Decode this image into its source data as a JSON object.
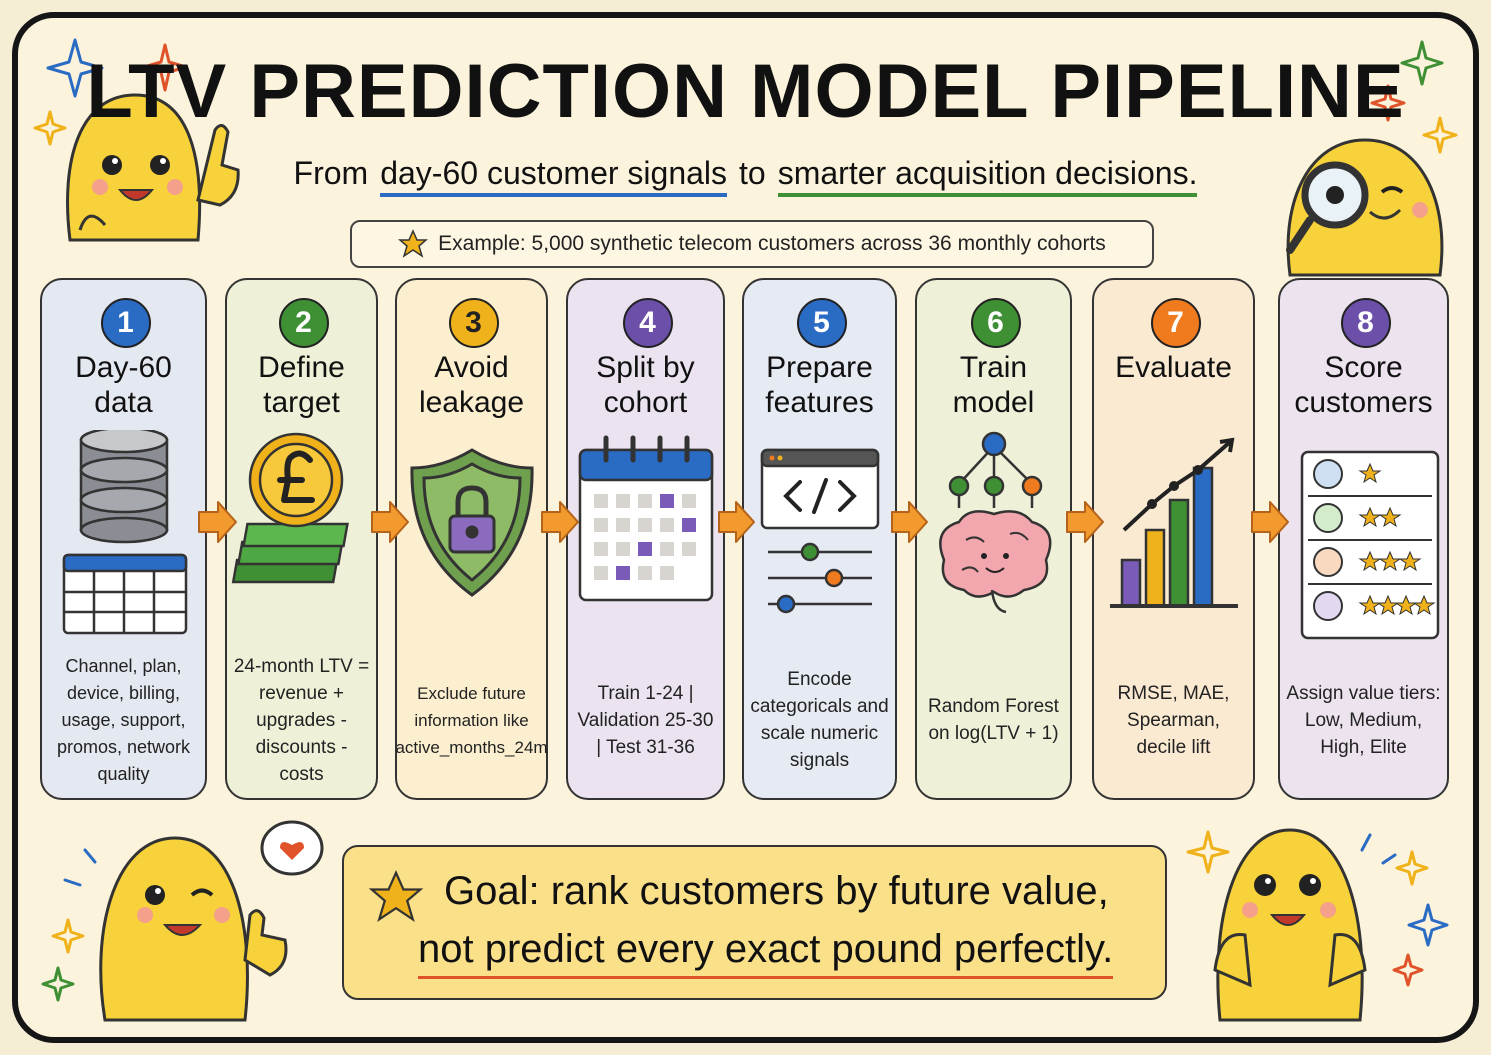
{
  "header": {
    "title": "LTV PREDICTION MODEL PIPELINE",
    "subtitle": {
      "prefix": "From",
      "highlight_1": "day-60 customer signals",
      "middle": "to",
      "highlight_2": "smarter acquisition decisions."
    },
    "example": "Example: 5,000 synthetic telecom customers across 36 monthly cohorts"
  },
  "steps": [
    {
      "number": 1,
      "title": "Day-60 data",
      "description": "Channel, plan, device, billing, usage, support, promos, network quality"
    },
    {
      "number": 2,
      "title": "Define target",
      "description": "24-month LTV = revenue + upgrades - discounts - costs"
    },
    {
      "number": 3,
      "title": "Avoid leakage",
      "description": "Exclude future information like active_months_24m"
    },
    {
      "number": 4,
      "title": "Split by cohort",
      "description": "Train 1-24 | Validation 25-30 | Test 31-36"
    },
    {
      "number": 5,
      "title": "Prepare features",
      "description": "Encode categoricals and scale numeric signals"
    },
    {
      "number": 6,
      "title": "Train model",
      "description": "Random Forest on log(LTV + 1)"
    },
    {
      "number": 7,
      "title": "Evaluate",
      "description": "RMSE, MAE, Spearman, decile lift"
    },
    {
      "number": 8,
      "title": "Score customers",
      "description": "Assign value tiers: Low, Medium, High, Elite"
    }
  ],
  "goal": {
    "line_1": "Goal: rank customers by future value,",
    "line_2": "not predict every exact pound perfectly."
  }
}
